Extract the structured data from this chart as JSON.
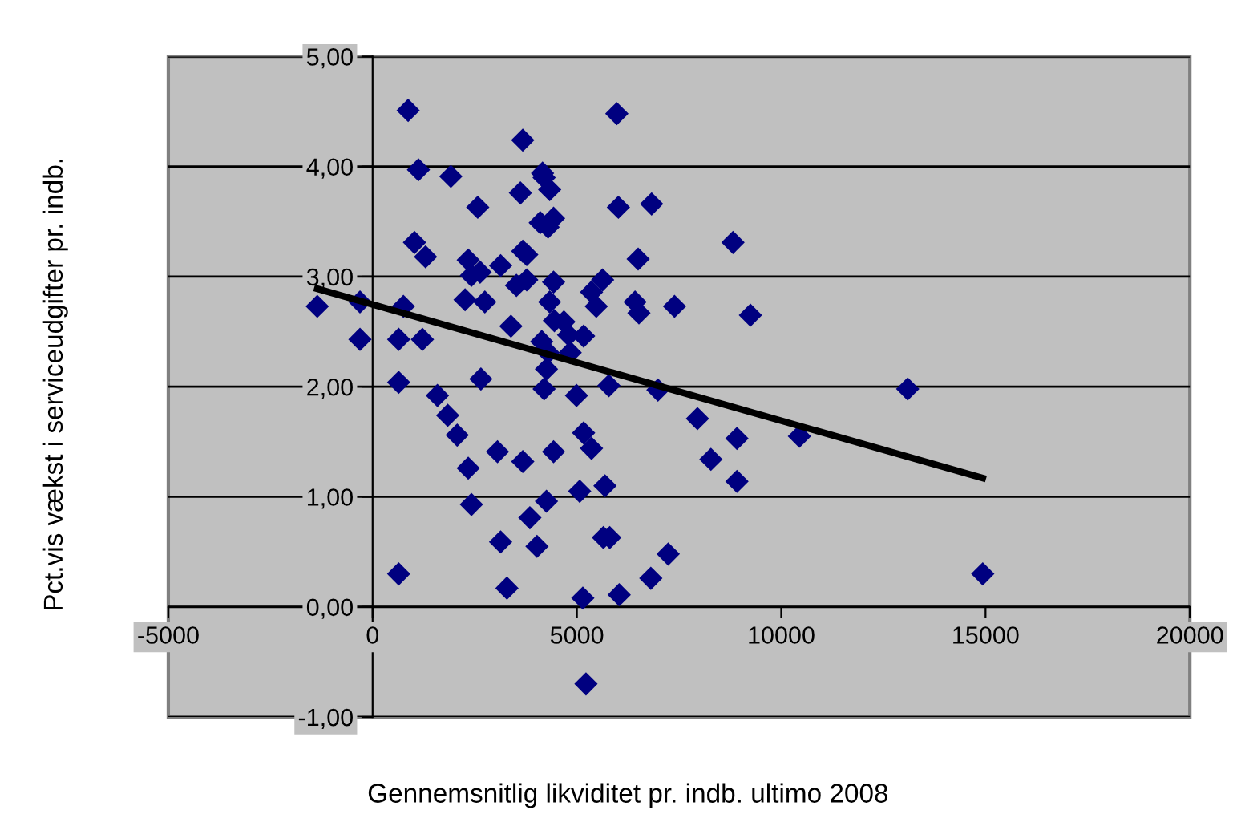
{
  "chart_data": {
    "type": "scatter",
    "xlabel": "Gennemsnitlig likviditet pr. indb. ultimo 2008",
    "ylabel": "Pct.vis vækst i serviceudgifter pr. indb.",
    "xlim": [
      -5000,
      20000
    ],
    "xticks": [
      -5000,
      0,
      5000,
      10000,
      15000,
      20000
    ],
    "ylim": [
      -1,
      5
    ],
    "yticks": [
      {
        "value": -1,
        "label": "-1,00"
      },
      {
        "value": 0,
        "label": "0,00"
      },
      {
        "value": 1,
        "label": "1,00"
      },
      {
        "value": 2,
        "label": "2,00"
      },
      {
        "value": 3,
        "label": "3,00"
      },
      {
        "value": 4,
        "label": "4,00"
      },
      {
        "value": 5,
        "label": "5,00"
      }
    ],
    "grid": "y",
    "legend": false,
    "marker": "diamond",
    "series": [
      {
        "color": "#000080",
        "x": [
          -1354,
          -309,
          -309,
          870,
          1122,
          754,
          638,
          638,
          638,
          1025,
          1296,
          1219,
          1915,
          1586,
          1838,
          2070,
          2340,
          2418,
          2340,
          2418,
          2263,
          2631,
          2747,
          2650,
          2573,
          3133,
          3056,
          3133,
          3288,
          3385,
          3675,
          3617,
          3675,
          3772,
          3520,
          3772,
          3675,
          3849,
          4023,
          4159,
          4197,
          4333,
          4101,
          4294,
          4429,
          4429,
          4333,
          4449,
          4139,
          4294,
          4255,
          4197,
          4429,
          4255,
          4681,
          4797,
          4836,
          4990,
          5164,
          5164,
          5068,
          5145,
          5222,
          5358,
          5358,
          5474,
          5629,
          5783,
          5687,
          5648,
          5803,
          6035,
          5977,
          6015,
          6499,
          6422,
          6518,
          6828,
          6983,
          6809,
          7234,
          7389,
          7950,
          8279,
          8820,
          8917,
          8917,
          9246,
          10445,
          13095,
          14932
        ],
        "values": [
          2.73,
          2.77,
          2.43,
          4.51,
          3.97,
          2.73,
          2.43,
          2.04,
          0.3,
          3.31,
          3.18,
          2.43,
          3.91,
          1.92,
          1.74,
          1.56,
          1.26,
          0.93,
          3.15,
          3.01,
          2.79,
          3.04,
          2.77,
          2.07,
          3.63,
          3.1,
          1.41,
          0.59,
          0.17,
          2.55,
          4.24,
          3.76,
          3.23,
          3.2,
          2.92,
          2.97,
          1.32,
          0.81,
          0.55,
          3.94,
          3.9,
          3.79,
          3.49,
          3.45,
          3.53,
          2.95,
          2.77,
          2.6,
          2.41,
          2.31,
          2.16,
          1.98,
          1.41,
          0.96,
          2.59,
          2.47,
          2.31,
          1.92,
          2.46,
          1.58,
          1.05,
          0.08,
          -0.7,
          1.44,
          2.86,
          2.73,
          2.97,
          2.01,
          1.1,
          0.63,
          0.63,
          0.11,
          4.48,
          3.63,
          3.16,
          2.77,
          2.67,
          3.66,
          1.97,
          0.26,
          0.48,
          2.73,
          1.71,
          1.34,
          3.31,
          1.53,
          1.14,
          2.65,
          1.55,
          1.98,
          0.3
        ]
      },
      {
        "type": "line",
        "marker": "none",
        "color": "#000000",
        "x": [
          -1354,
          14932
        ],
        "values": [
          2.89,
          1.17
        ]
      }
    ]
  }
}
